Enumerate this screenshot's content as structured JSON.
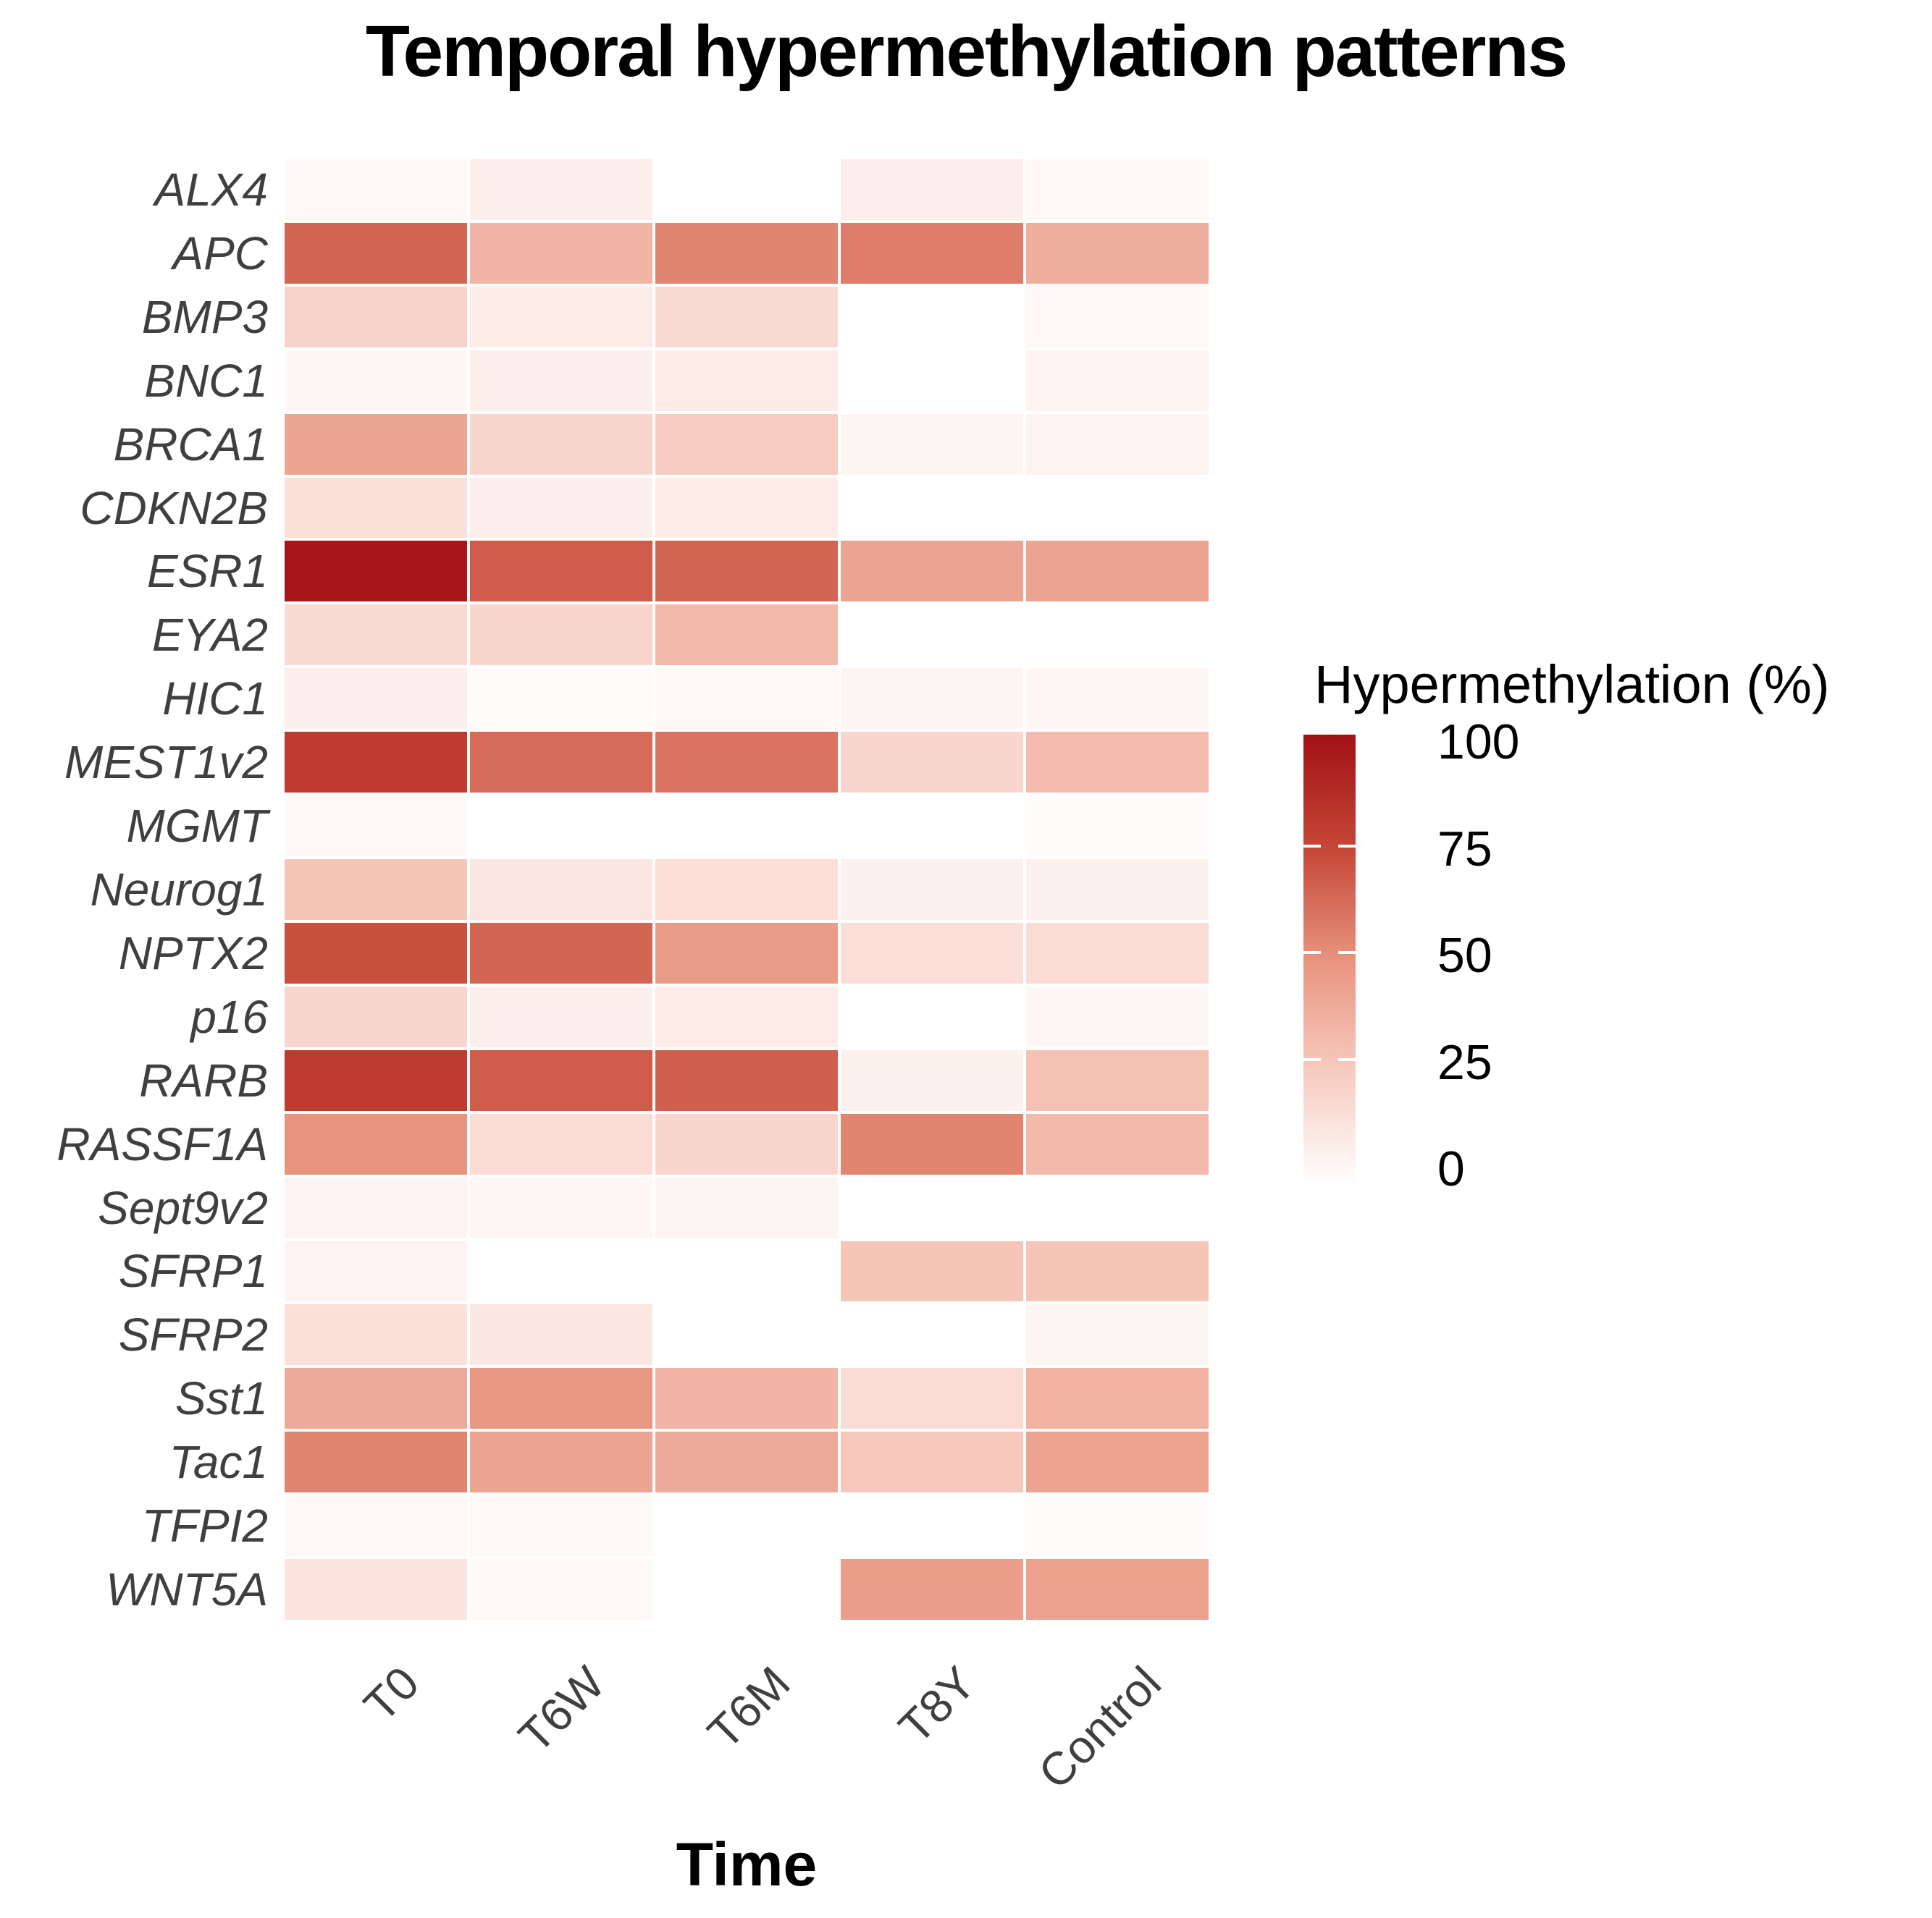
{
  "title": "Temporal hypermethylation patterns",
  "x_axis": {
    "label": "Time",
    "categories": [
      "T0",
      "T6W",
      "T6M",
      "T8Y",
      "Control"
    ]
  },
  "y_axis": {
    "genes": [
      "ALX4",
      "APC",
      "BMP3",
      "BNC1",
      "BRCA1",
      "CDKN2B",
      "ESR1",
      "EYA2",
      "HIC1",
      "MEST1v2",
      "MGMT",
      "Neurog1",
      "NPTX2",
      "p16",
      "RARB",
      "RASSF1A",
      "Sept9v2",
      "SFRP1",
      "SFRP2",
      "Sst1",
      "Tac1",
      "TFPI2",
      "WNT5A"
    ]
  },
  "legend": {
    "title": "Hypermethylation (%)",
    "tick_labels": [
      "100",
      "75",
      "50",
      "25",
      "0"
    ],
    "tick_values": [
      100,
      75,
      50,
      25,
      0
    ]
  },
  "chart_data": {
    "type": "heatmap",
    "title": "Temporal hypermethylation patterns",
    "xlabel": "Time",
    "ylabel": "",
    "x": [
      "T0",
      "T6W",
      "T6M",
      "T8Y",
      "Control"
    ],
    "y": [
      "ALX4",
      "APC",
      "BMP3",
      "BNC1",
      "BRCA1",
      "CDKN2B",
      "ESR1",
      "EYA2",
      "HIC1",
      "MEST1v2",
      "MGMT",
      "Neurog1",
      "NPTX2",
      "p16",
      "RARB",
      "RASSF1A",
      "Sept9v2",
      "SFRP1",
      "SFRP2",
      "Sst1",
      "Tac1",
      "TFPI2",
      "WNT5A"
    ],
    "values": [
      [
        3,
        8,
        0,
        8,
        3
      ],
      [
        65,
        35,
        55,
        57,
        38
      ],
      [
        22,
        10,
        18,
        0,
        3
      ],
      [
        4,
        8,
        10,
        0,
        6
      ],
      [
        42,
        20,
        25,
        5,
        6
      ],
      [
        15,
        8,
        10,
        0,
        0
      ],
      [
        97,
        68,
        65,
        42,
        42
      ],
      [
        18,
        20,
        33,
        0,
        0
      ],
      [
        8,
        2,
        3,
        5,
        4
      ],
      [
        80,
        63,
        60,
        20,
        32
      ],
      [
        3,
        0,
        0,
        0,
        2
      ],
      [
        28,
        12,
        16,
        7,
        7
      ],
      [
        72,
        65,
        46,
        16,
        17
      ],
      [
        20,
        8,
        10,
        0,
        4
      ],
      [
        80,
        68,
        67,
        7,
        30
      ],
      [
        50,
        17,
        20,
        55,
        33
      ],
      [
        6,
        4,
        5,
        0,
        0
      ],
      [
        6,
        0,
        0,
        28,
        28
      ],
      [
        15,
        12,
        0,
        0,
        5
      ],
      [
        40,
        48,
        35,
        17,
        37
      ],
      [
        55,
        42,
        40,
        27,
        43
      ],
      [
        3,
        3,
        0,
        0,
        2
      ],
      [
        13,
        3,
        0,
        45,
        44
      ]
    ],
    "value_range": [
      0,
      100
    ],
    "legend_position": "right",
    "grid": false,
    "colorscale_stops": [
      {
        "value": 0,
        "color": "#FFFFFF"
      },
      {
        "value": 25,
        "color": "#F7CCC0"
      },
      {
        "value": 50,
        "color": "#E8937E"
      },
      {
        "value": 75,
        "color": "#C54636"
      },
      {
        "value": 100,
        "color": "#A21115"
      }
    ]
  }
}
